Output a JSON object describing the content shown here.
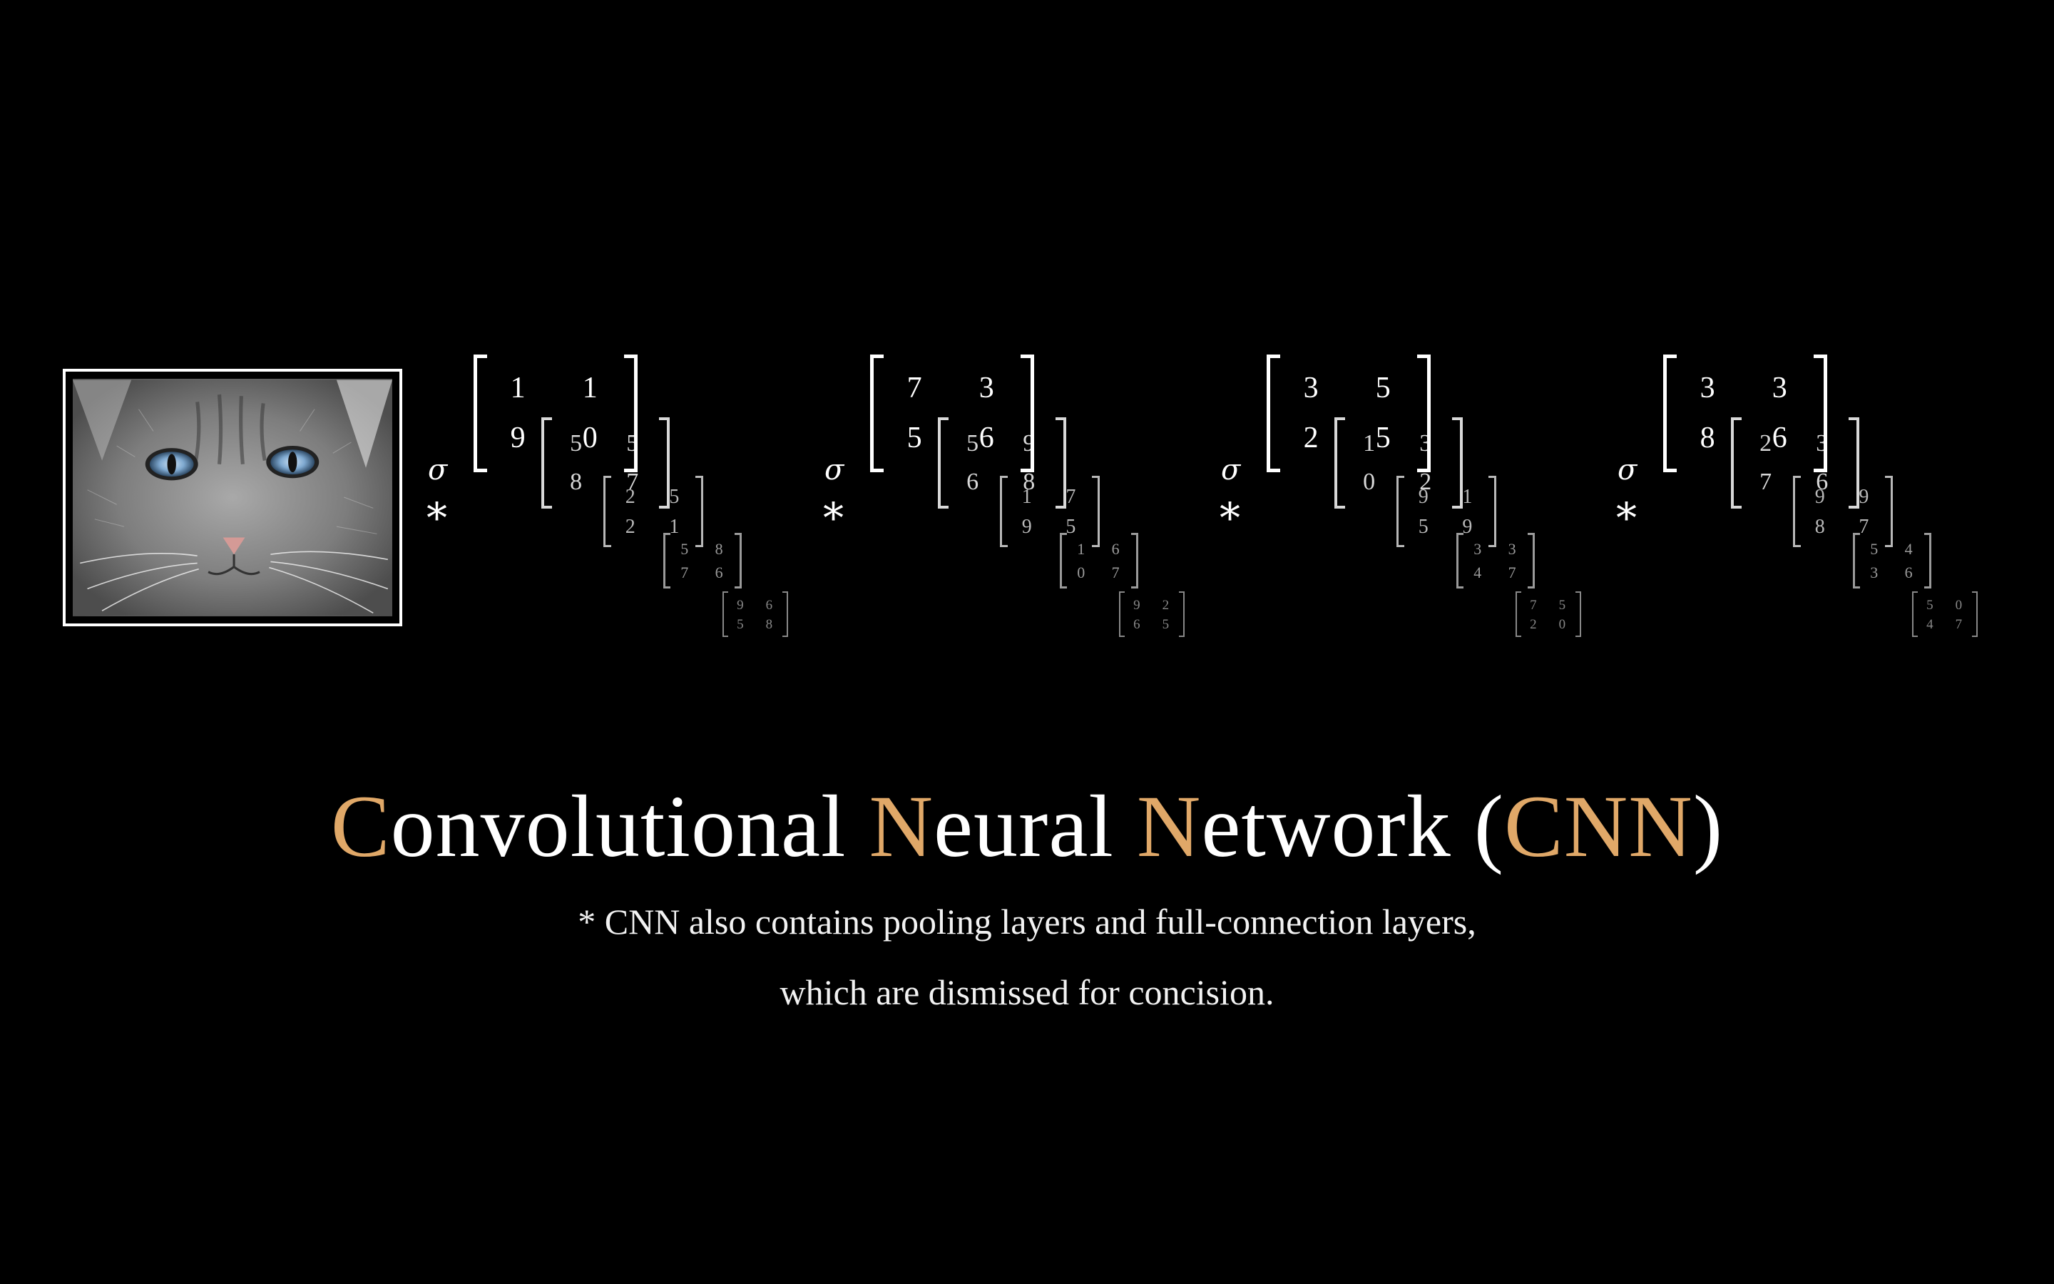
{
  "title": {
    "parts": [
      {
        "text": "C",
        "hl": true
      },
      {
        "text": "onvolutional ",
        "hl": false
      },
      {
        "text": "N",
        "hl": true
      },
      {
        "text": "eural ",
        "hl": false
      },
      {
        "text": "N",
        "hl": true
      },
      {
        "text": "etwork (",
        "hl": false
      },
      {
        "text": "CNN",
        "hl": true
      },
      {
        "text": ")",
        "hl": false
      }
    ]
  },
  "note": {
    "line1": "* CNN also contains pooling layers and full-connection layers,",
    "line2": "which are dismissed for concision."
  },
  "operators": {
    "activation": "σ",
    "convolution": "*"
  },
  "input_image": {
    "icon": "cat-photo-icon"
  },
  "layers": [
    {
      "kernels": [
        [
          [
            "1",
            "1"
          ],
          [
            "9",
            "0"
          ]
        ],
        [
          [
            "5",
            "5"
          ],
          [
            "8",
            "7"
          ]
        ],
        [
          [
            "2",
            "5"
          ],
          [
            "2",
            "1"
          ]
        ],
        [
          [
            "5",
            "8"
          ],
          [
            "7",
            "6"
          ]
        ],
        [
          [
            "9",
            "6"
          ],
          [
            "5",
            "8"
          ]
        ]
      ]
    },
    {
      "kernels": [
        [
          [
            "7",
            "3"
          ],
          [
            "5",
            "6"
          ]
        ],
        [
          [
            "5",
            "9"
          ],
          [
            "6",
            "8"
          ]
        ],
        [
          [
            "1",
            "7"
          ],
          [
            "9",
            "5"
          ]
        ],
        [
          [
            "1",
            "6"
          ],
          [
            "0",
            "7"
          ]
        ],
        [
          [
            "9",
            "2"
          ],
          [
            "6",
            "5"
          ]
        ]
      ]
    },
    {
      "kernels": [
        [
          [
            "3",
            "5"
          ],
          [
            "2",
            "5"
          ]
        ],
        [
          [
            "1",
            "3"
          ],
          [
            "0",
            "2"
          ]
        ],
        [
          [
            "9",
            "1"
          ],
          [
            "5",
            "9"
          ]
        ],
        [
          [
            "3",
            "3"
          ],
          [
            "4",
            "7"
          ]
        ],
        [
          [
            "7",
            "5"
          ],
          [
            "2",
            "0"
          ]
        ]
      ]
    },
    {
      "kernels": [
        [
          [
            "3",
            "3"
          ],
          [
            "8",
            "6"
          ]
        ],
        [
          [
            "2",
            "3"
          ],
          [
            "7",
            "6"
          ]
        ],
        [
          [
            "9",
            "9"
          ],
          [
            "8",
            "7"
          ]
        ],
        [
          [
            "5",
            "4"
          ],
          [
            "3",
            "6"
          ]
        ],
        [
          [
            "5",
            "0"
          ],
          [
            "4",
            "7"
          ]
        ]
      ]
    }
  ],
  "colors": {
    "background": "#000000",
    "text": "#ffffff",
    "accent": "#e0a868"
  }
}
